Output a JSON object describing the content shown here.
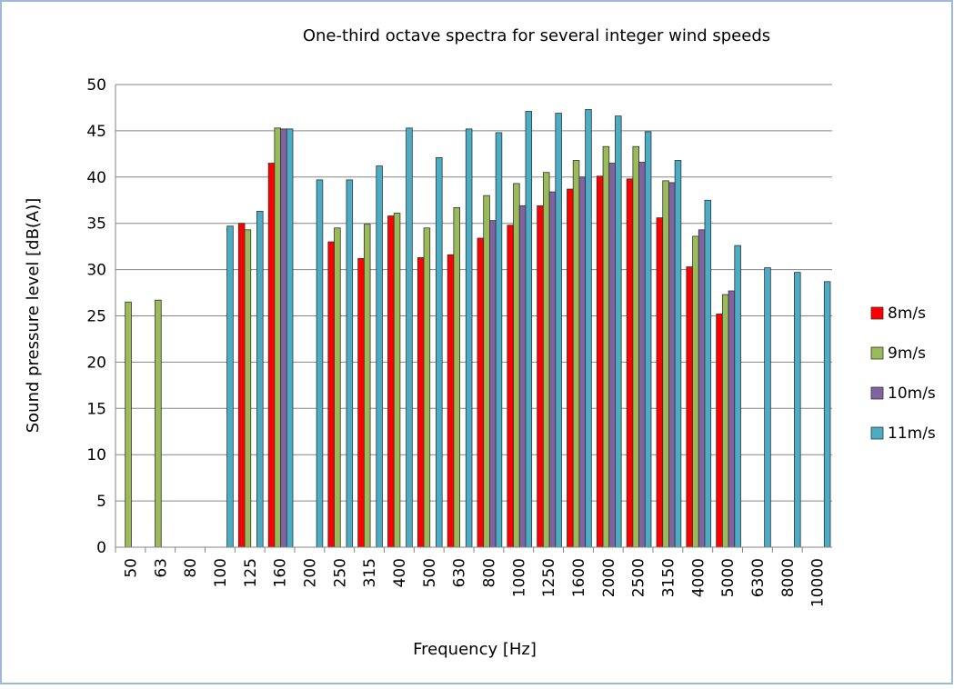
{
  "chart_data": {
    "type": "bar",
    "title": "One-third octave spectra for several integer wind speeds",
    "x_label": "Frequency [Hz]",
    "y_label": "Sound pressure level [dB(A)]",
    "categories": [
      "50",
      "63",
      "80",
      "100",
      "125",
      "160",
      "200",
      "250",
      "315",
      "400",
      "500",
      "630",
      "800",
      "1000",
      "1250",
      "1600",
      "2000",
      "2500",
      "3150",
      "4000",
      "5000",
      "6300",
      "8000",
      "10000"
    ],
    "series": [
      {
        "name": "8m/s",
        "color": "#ff0000",
        "values": [
          null,
          null,
          null,
          null,
          35,
          41.5,
          null,
          33,
          31.2,
          35.8,
          31.3,
          31.6,
          33.4,
          34.8,
          36.9,
          38.7,
          40.1,
          39.8,
          35.6,
          30.3,
          25.2,
          null,
          null,
          null
        ]
      },
      {
        "name": "9m/s",
        "color": "#9bbb59",
        "values": [
          26.5,
          26.7,
          null,
          null,
          34.3,
          45.3,
          null,
          34.5,
          34.9,
          36.1,
          34.5,
          36.7,
          38,
          39.3,
          40.5,
          41.8,
          43.3,
          43.3,
          39.6,
          33.6,
          27.3,
          null,
          null,
          null
        ]
      },
      {
        "name": "10m/s",
        "color": "#8064a2",
        "values": [
          null,
          null,
          null,
          null,
          null,
          45.2,
          null,
          null,
          null,
          null,
          null,
          null,
          35.3,
          36.9,
          38.4,
          40,
          41.5,
          41.6,
          39.4,
          34.3,
          27.7,
          null,
          null,
          null
        ]
      },
      {
        "name": "11m/s",
        "color": "#4bacc6",
        "values": [
          null,
          null,
          null,
          34.7,
          36.3,
          45.2,
          39.7,
          39.7,
          41.2,
          45.3,
          42.1,
          45.2,
          44.8,
          47.1,
          46.9,
          47.3,
          46.6,
          44.9,
          41.8,
          37.5,
          32.6,
          30.2,
          29.7,
          28.7
        ]
      }
    ],
    "ylim": [
      0,
      50
    ],
    "yticks": [
      0,
      5,
      10,
      15,
      20,
      25,
      30,
      35,
      40,
      45,
      50
    ],
    "grid": true,
    "legend": "right"
  }
}
